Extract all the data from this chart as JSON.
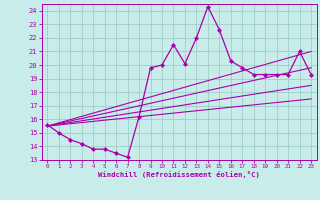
{
  "xlabel": "Windchill (Refroidissement éolien,°C)",
  "background_color": "#c8ecea",
  "grid_color": "#a0cdc8",
  "line_color": "#aa00aa",
  "x_main": [
    0,
    1,
    2,
    3,
    4,
    5,
    6,
    7,
    8,
    9,
    10,
    11,
    12,
    13,
    14,
    15,
    16,
    17,
    18,
    19,
    20,
    21,
    22,
    23
  ],
  "y_main": [
    15.6,
    15.0,
    14.5,
    14.2,
    13.8,
    13.8,
    13.5,
    13.2,
    16.2,
    19.8,
    20.0,
    21.5,
    20.1,
    22.0,
    24.3,
    22.6,
    20.3,
    19.8,
    19.3,
    19.3,
    19.3,
    19.3,
    21.0,
    19.3
  ],
  "line1_x": [
    0,
    23
  ],
  "line1_y": [
    15.5,
    21.0
  ],
  "line2_x": [
    0,
    23
  ],
  "line2_y": [
    15.5,
    19.8
  ],
  "line3_x": [
    0,
    23
  ],
  "line3_y": [
    15.5,
    18.5
  ],
  "line4_x": [
    0,
    23
  ],
  "line4_y": [
    15.5,
    17.5
  ],
  "ylim": [
    13.0,
    24.5
  ],
  "xlim": [
    -0.5,
    23.5
  ],
  "yticks": [
    13,
    14,
    15,
    16,
    17,
    18,
    19,
    20,
    21,
    22,
    23,
    24
  ],
  "xticks": [
    0,
    1,
    2,
    3,
    4,
    5,
    6,
    7,
    8,
    9,
    10,
    11,
    12,
    13,
    14,
    15,
    16,
    17,
    18,
    19,
    20,
    21,
    22,
    23
  ]
}
